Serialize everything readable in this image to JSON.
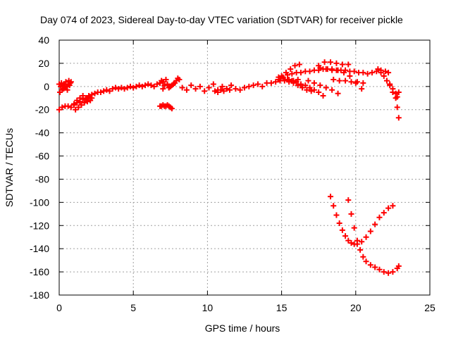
{
  "chart_data": {
    "type": "scatter",
    "title": "Day 074 of 2023, Sidereal Day-to-day VTEC variation (SDTVAR) for receiver pickle",
    "xlabel": "GPS time / hours",
    "ylabel": "SDTVAR / TECUs",
    "xlim": [
      0,
      25
    ],
    "ylim": [
      -180,
      40
    ],
    "xticks": [
      0,
      5,
      10,
      15,
      20,
      25
    ],
    "yticks": [
      40,
      20,
      0,
      -20,
      -40,
      -60,
      -80,
      -100,
      -120,
      -140,
      -160,
      -180
    ],
    "grid": true,
    "marker": "plus",
    "color": "#ff0000",
    "series": [
      {
        "x": [
          0.0,
          0.05,
          0.1,
          0.15,
          0.2,
          0.25,
          0.3,
          0.35,
          0.4,
          0.45,
          0.5,
          0.55,
          0.6,
          0.65,
          0.7,
          0.75,
          0.8
        ],
        "y": [
          2,
          -5,
          0,
          3,
          -3,
          1,
          -2,
          2,
          -1,
          4,
          0,
          -3,
          2,
          5,
          1,
          3,
          4
        ]
      },
      {
        "x": [
          0.0,
          0.2,
          0.4,
          0.6,
          0.8,
          1.0,
          1.2,
          1.4,
          1.6,
          1.8,
          2.0,
          2.2,
          2.4,
          2.6,
          2.8,
          3.0,
          3.2,
          3.4,
          3.6,
          3.8,
          4.0,
          4.2,
          4.4,
          4.6,
          4.8,
          5.0,
          5.2,
          5.4,
          5.6,
          5.8,
          6.0,
          6.2,
          6.4,
          6.6,
          6.8,
          7.0
        ],
        "y": [
          -20,
          -18,
          -17,
          -17,
          -18,
          -16,
          -14,
          -13,
          -11,
          -10,
          -8,
          -7,
          -6,
          -5,
          -5,
          -4,
          -3,
          -4,
          -2,
          -1,
          -2,
          -1,
          -2,
          -1,
          0,
          -1,
          0,
          1,
          0,
          1,
          2,
          1,
          0,
          2,
          3,
          4
        ]
      },
      {
        "x": [
          1.0,
          1.1,
          1.2,
          1.3,
          1.4,
          1.5,
          1.6,
          1.7,
          1.8,
          1.9,
          2.0,
          2.1,
          2.2
        ],
        "y": [
          -15,
          -20,
          -12,
          -18,
          -10,
          -16,
          -8,
          -14,
          -11,
          -13,
          -9,
          -12,
          -10
        ]
      },
      {
        "x": [
          6.8,
          6.9,
          7.0,
          7.1,
          7.2,
          7.3,
          7.4,
          7.5
        ],
        "y": [
          3,
          5,
          -2,
          1,
          6,
          2,
          -1,
          0
        ]
      },
      {
        "x": [
          6.8,
          6.9,
          7.0,
          7.1,
          7.2,
          7.3,
          7.4,
          7.5,
          7.6
        ],
        "y": [
          -17,
          -17,
          -16,
          -17,
          -17,
          -16,
          -17,
          -18,
          -19
        ]
      },
      {
        "x": [
          7.4,
          7.5,
          7.6,
          7.7,
          7.8,
          7.9,
          8.0,
          8.1
        ],
        "y": [
          -1,
          0,
          1,
          2,
          3,
          5,
          7,
          6
        ]
      },
      {
        "x": [
          8.3,
          8.6,
          8.9,
          9.2,
          9.5,
          9.8,
          10.1,
          10.4,
          10.7,
          11.0,
          11.3,
          11.6,
          11.9,
          12.2,
          12.5,
          12.8,
          13.1,
          13.4,
          13.7,
          14.0,
          14.3,
          14.6,
          14.9,
          15.2,
          15.5,
          15.8,
          16.1
        ],
        "y": [
          -1,
          -3,
          1,
          -2,
          0,
          -4,
          -1,
          2,
          -3,
          0,
          -2,
          1,
          -2,
          -3,
          -1,
          0,
          1,
          2,
          0,
          3,
          3,
          4,
          5,
          5,
          6,
          5,
          6
        ]
      },
      {
        "x": [
          10.5,
          10.7,
          10.9,
          11.1,
          11.3,
          11.5
        ],
        "y": [
          -4,
          -5,
          -3,
          -4,
          -2,
          -3
        ]
      },
      {
        "x": [
          14.8,
          15.1,
          15.4,
          15.7,
          16.0,
          16.3,
          16.6,
          16.9,
          17.2,
          17.5,
          17.8,
          18.1,
          18.4,
          18.7,
          19.0,
          19.3,
          19.6,
          19.9,
          20.2,
          20.5,
          20.8,
          21.1,
          21.4,
          21.7,
          22.0,
          22.2
        ],
        "y": [
          6,
          8,
          10,
          11,
          12,
          12,
          13,
          13,
          14,
          14,
          15,
          15,
          15,
          14,
          14,
          14,
          13,
          13,
          12,
          12,
          11,
          12,
          13,
          14,
          13,
          12
        ]
      },
      {
        "x": [
          15.0,
          15.3,
          15.6,
          15.9,
          16.2
        ],
        "y": [
          9,
          12,
          15,
          18,
          19
        ]
      },
      {
        "x": [
          14.8,
          15.1,
          15.4,
          15.7,
          16.0,
          16.3,
          16.6,
          16.9,
          17.2,
          17.5,
          17.8
        ],
        "y": [
          8,
          7,
          6,
          5,
          4,
          2,
          1,
          -1,
          -3,
          -5,
          -8
        ]
      },
      {
        "x": [
          15.5,
          15.8,
          16.1,
          16.4,
          16.7,
          17.0
        ],
        "y": [
          4,
          3,
          1,
          -1,
          -3,
          -4
        ]
      },
      {
        "x": [
          16.8,
          17.2,
          17.6,
          18.0,
          18.4,
          18.8
        ],
        "y": [
          5,
          3,
          1,
          -1,
          -3,
          -6
        ]
      },
      {
        "x": [
          17.5,
          17.9,
          18.3,
          18.7,
          19.1,
          19.5
        ],
        "y": [
          18,
          21,
          21,
          20,
          19,
          19
        ]
      },
      {
        "x": [
          17.6,
          18.0,
          18.4,
          18.8,
          19.2,
          19.6,
          20.0,
          20.4
        ],
        "y": [
          16,
          15,
          14,
          14,
          12,
          9,
          3,
          -2
        ]
      },
      {
        "x": [
          18.5,
          18.9,
          19.3,
          19.7,
          20.1,
          20.5
        ],
        "y": [
          6,
          5,
          5,
          4,
          4,
          3
        ]
      },
      {
        "x": [
          21.5,
          21.7,
          21.9,
          22.1,
          22.3,
          22.5,
          22.7,
          22.8,
          22.9
        ],
        "y": [
          15,
          12,
          9,
          5,
          1,
          -5,
          -10,
          -18,
          -27
        ]
      },
      {
        "x": [
          22.3,
          22.5,
          22.7,
          22.8,
          22.9
        ],
        "y": [
          2,
          -2,
          -6,
          -9,
          -5
        ]
      },
      {
        "x": [
          18.3,
          18.5,
          18.7,
          18.9,
          19.1,
          19.3,
          19.5,
          19.7,
          19.9,
          20.1,
          20.4,
          20.7,
          21.0,
          21.3,
          21.6,
          21.9,
          22.2,
          22.5
        ],
        "y": [
          -95,
          -103,
          -111,
          -118,
          -124,
          -129,
          -133,
          -135,
          -136,
          -136,
          -134,
          -130,
          -125,
          -119,
          -113,
          -109,
          -105,
          -103
        ]
      },
      {
        "x": [
          19.5,
          19.7,
          19.9,
          20.1,
          20.3,
          20.5,
          20.7,
          21.0,
          21.3,
          21.6,
          21.9,
          22.2,
          22.5,
          22.8,
          22.9
        ],
        "y": [
          -98,
          -110,
          -122,
          -133,
          -141,
          -147,
          -151,
          -154,
          -156,
          -158,
          -160,
          -161,
          -160,
          -157,
          -155
        ]
      }
    ]
  }
}
